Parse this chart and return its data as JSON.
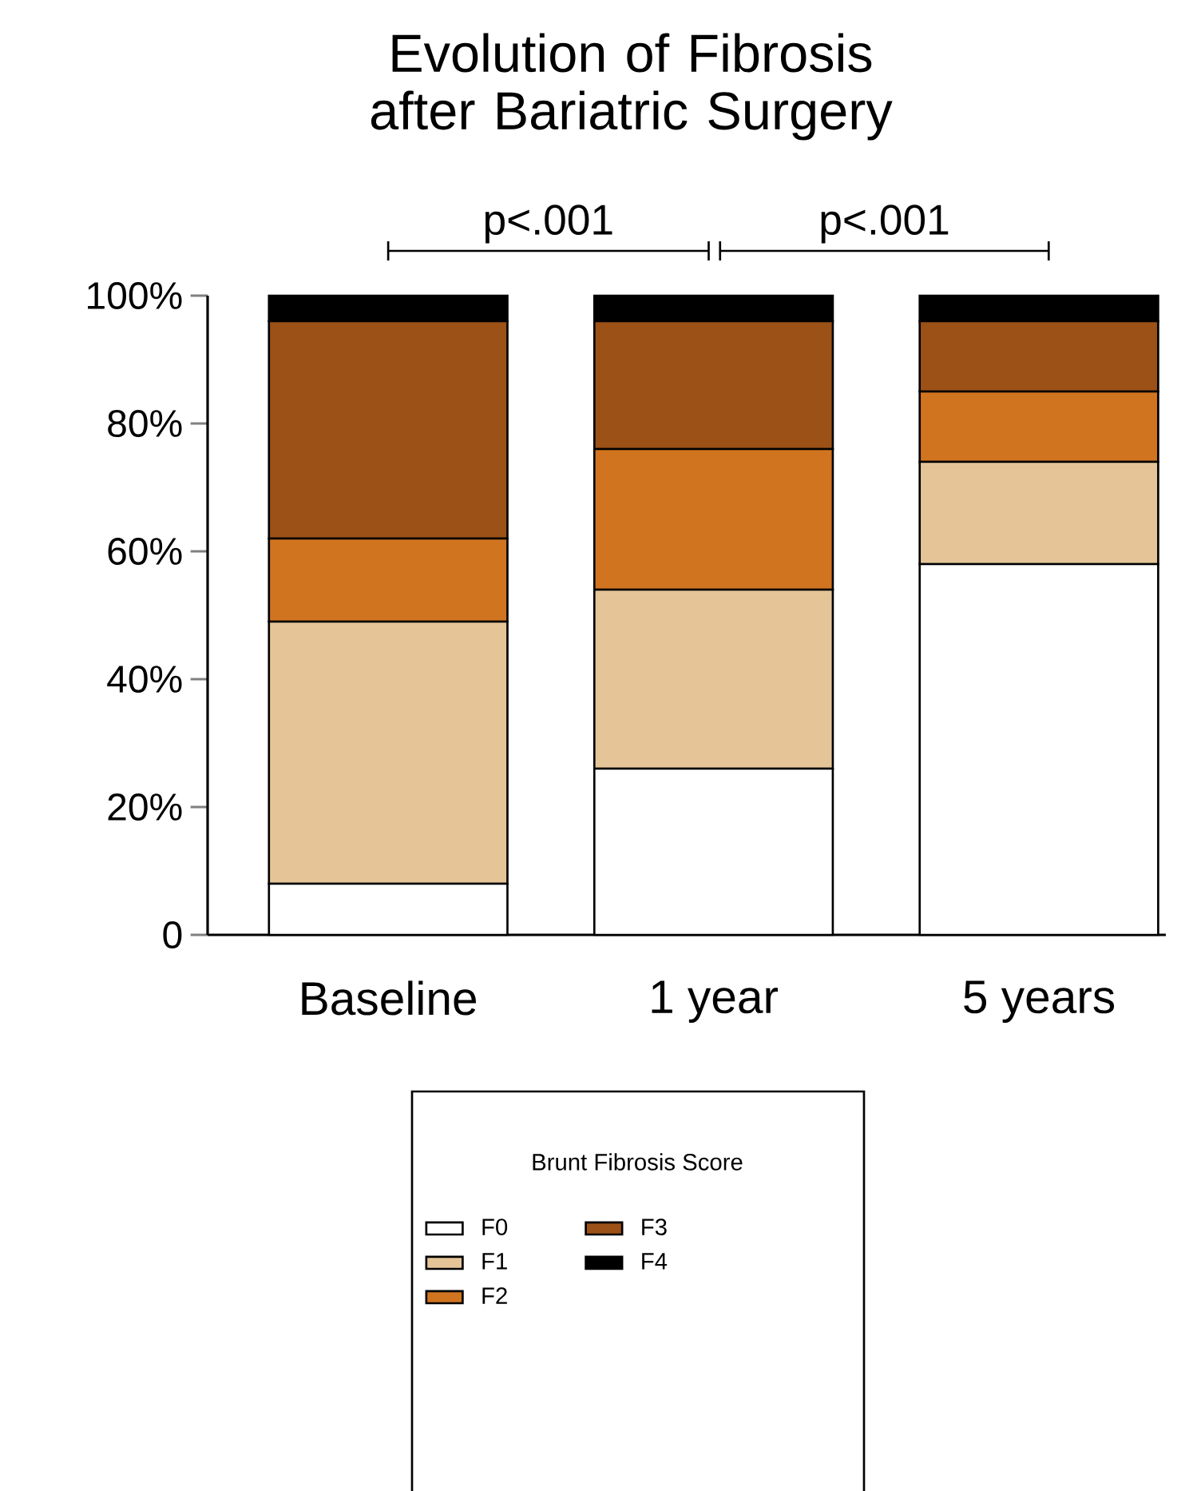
{
  "chart_data": {
    "type": "bar",
    "stacked": true,
    "title": "Evolution of Fibrosis after Bariatric Surgery",
    "categories": [
      "Baseline",
      "1 year",
      "5 years"
    ],
    "series": [
      {
        "name": "F0",
        "color": "#ffffff",
        "values": [
          8,
          26,
          58
        ]
      },
      {
        "name": "F1",
        "color": "#e5c597",
        "values": [
          41,
          28,
          16
        ]
      },
      {
        "name": "F2",
        "color": "#d07420",
        "values": [
          13,
          22,
          11
        ]
      },
      {
        "name": "F3",
        "color": "#9c5116",
        "values": [
          34,
          20,
          11
        ]
      },
      {
        "name": "F4",
        "color": "#000000",
        "values": [
          4,
          4,
          4
        ]
      }
    ],
    "ylim": [
      0,
      100
    ],
    "yticks": [
      0,
      {
        "value": 20,
        "label": "20%"
      },
      {
        "value": 40,
        "label": "40%"
      },
      {
        "value": 60,
        "label": "60%"
      },
      {
        "value": 80,
        "label": "80%"
      },
      {
        "value": 100,
        "label": "100%"
      }
    ],
    "legend": "bottom",
    "legend_title": "Brunt Fibrosis Score",
    "annotations": [
      "p<.001",
      "p<.001"
    ]
  }
}
